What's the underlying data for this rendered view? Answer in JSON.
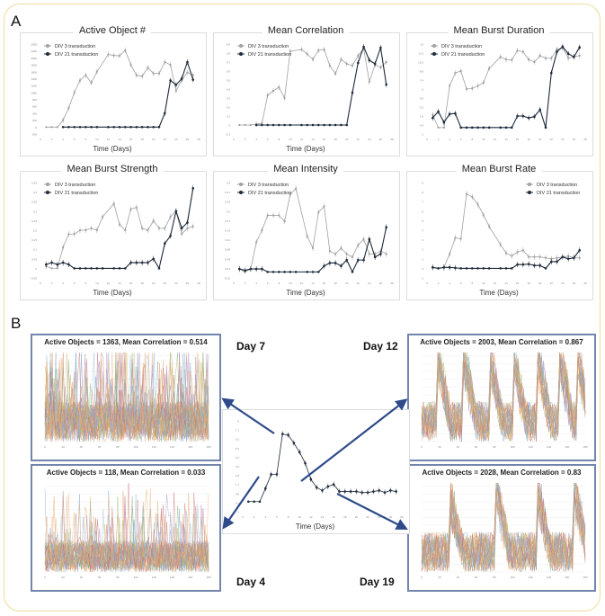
{
  "panel_a_label": "A",
  "panel_b_label": "B",
  "colors": {
    "div3": "#a0a0a0",
    "div21": "#1e2a3a",
    "arrow": "#2e4a8a",
    "frame": "#f0dc9a",
    "trace_box": "#7185ad"
  },
  "chart_data": [
    {
      "type": "line",
      "title": "Active Object #",
      "xlabel": "Time (Days)",
      "ylim": [
        -200,
        2400
      ],
      "xlim": [
        0,
        28
      ],
      "legend": "top-left",
      "series": [
        {
          "name": "DIV 3 transduction",
          "x": [
            1,
            2,
            3,
            4,
            5,
            6,
            7,
            8,
            9,
            10,
            12,
            13,
            14,
            15,
            16,
            17,
            18,
            19,
            20,
            21,
            22,
            23,
            24,
            25,
            26,
            27
          ],
          "values": [
            0,
            0,
            0,
            200,
            550,
            1000,
            1350,
            1500,
            1280,
            1600,
            2100,
            2070,
            2060,
            2220,
            1800,
            1500,
            1470,
            1720,
            1550,
            1550,
            1880,
            1800,
            1050,
            1350,
            1580,
            1500
          ]
        },
        {
          "name": "DIV 21 transduction",
          "x": [
            4,
            5,
            6,
            7,
            8,
            9,
            10,
            12,
            13,
            14,
            15,
            16,
            17,
            18,
            19,
            20,
            21,
            22,
            23,
            24,
            25,
            26,
            27
          ],
          "values": [
            0,
            0,
            0,
            0,
            0,
            0,
            0,
            0,
            0,
            0,
            0,
            0,
            0,
            0,
            0,
            0,
            0,
            400,
            1350,
            1220,
            1400,
            1880,
            1370
          ]
        }
      ]
    },
    {
      "type": "line",
      "title": "Mean Correlation",
      "xlabel": "Time (Days)",
      "ylim": [
        -0.1,
        0.9
      ],
      "xlim": [
        0,
        28
      ],
      "legend": "top-left",
      "series": [
        {
          "name": "DIV 3 transduction",
          "x": [
            1,
            2,
            3,
            4,
            5,
            6,
            7,
            8,
            9,
            10,
            12,
            13,
            14,
            15,
            16,
            17,
            18,
            19,
            20,
            21,
            22,
            23,
            24,
            25,
            26,
            27
          ],
          "values": [
            0,
            0,
            0,
            0.01,
            0.02,
            0.33,
            0.38,
            0.42,
            0.3,
            0.82,
            0.84,
            0.79,
            0.73,
            0.83,
            0.84,
            0.66,
            0.57,
            0.73,
            0.68,
            0.66,
            0.77,
            0.85,
            0.48,
            0.67,
            0.64,
            0.7
          ]
        },
        {
          "name": "DIV 21 transduction",
          "x": [
            4,
            5,
            6,
            7,
            8,
            9,
            10,
            12,
            13,
            14,
            15,
            16,
            17,
            18,
            19,
            20,
            21,
            22,
            23,
            24,
            25,
            26,
            27
          ],
          "values": [
            0,
            0,
            0,
            0,
            0,
            0,
            0,
            0,
            0,
            0,
            0,
            0,
            0,
            0,
            0,
            0,
            0.36,
            0.69,
            0.87,
            0.72,
            0.68,
            0.86,
            0.45
          ]
        }
      ]
    },
    {
      "type": "line",
      "title": "Mean Burst Duration",
      "xlabel": "",
      "ylim": [
        -1,
        13
      ],
      "xlim": [
        0,
        28
      ],
      "legend": "top-left",
      "series": [
        {
          "name": "DIV 3 transduction",
          "x": [
            1,
            2,
            3,
            4,
            5,
            6,
            7,
            8,
            9,
            10,
            11,
            13,
            14,
            15,
            16,
            17,
            18,
            19,
            20,
            21,
            22,
            23,
            24,
            25,
            26,
            27
          ],
          "values": [
            2,
            0,
            0,
            6.5,
            8.5,
            8.8,
            6,
            6.1,
            6.5,
            7,
            9.2,
            11,
            10.6,
            10.5,
            12,
            11.8,
            10.6,
            10.2,
            11.2,
            10.8,
            10.8,
            12.2,
            12.4,
            10.8,
            11,
            11.2
          ]
        },
        {
          "name": "DIV 21 transduction",
          "x": [
            1,
            2,
            3,
            4,
            5,
            6,
            7,
            8,
            9,
            10,
            11,
            13,
            14,
            15,
            16,
            17,
            18,
            19,
            20,
            21,
            22,
            23,
            24,
            25,
            26,
            27
          ],
          "values": [
            1.5,
            2.5,
            0.8,
            2.1,
            2.2,
            0,
            0,
            0,
            0,
            0,
            0,
            0,
            0,
            0,
            1.8,
            1.8,
            1.5,
            1.7,
            2.8,
            0,
            8.5,
            11.8,
            12.6,
            11.5,
            11,
            12.5
          ]
        }
      ]
    },
    {
      "type": "line",
      "title": "Mean Burst Strength",
      "xlabel": "Time (Days)",
      "ylim": [
        -0.05,
        0.45
      ],
      "xlim": [
        0,
        28
      ],
      "legend": "top-left",
      "series": [
        {
          "name": "DIV 3 transduction",
          "x": [
            1,
            2,
            3,
            4,
            5,
            6,
            7,
            8,
            9,
            10,
            11,
            13,
            14,
            15,
            16,
            17,
            18,
            19,
            20,
            21,
            22,
            23,
            24,
            25,
            26,
            27
          ],
          "values": [
            0.01,
            0,
            0,
            0.11,
            0.18,
            0.18,
            0.2,
            0.2,
            0.21,
            0.2,
            0.27,
            0.34,
            0.23,
            0.2,
            0.31,
            0.32,
            0.21,
            0.2,
            0.25,
            0.21,
            0.21,
            0.27,
            0.3,
            0.18,
            0.21,
            0.22
          ]
        },
        {
          "name": "DIV 21 transduction",
          "x": [
            1,
            2,
            3,
            4,
            5,
            6,
            7,
            8,
            9,
            10,
            11,
            13,
            14,
            15,
            16,
            17,
            18,
            19,
            20,
            21,
            22,
            23,
            24,
            25,
            26,
            27
          ],
          "values": [
            0.02,
            0.03,
            0.02,
            0.03,
            0.02,
            0,
            0,
            0,
            0,
            0,
            0,
            0,
            0,
            0,
            0.03,
            0.03,
            0.03,
            0.03,
            0.05,
            0,
            0.13,
            0.17,
            0.3,
            0.21,
            0.24,
            0.42
          ]
        }
      ]
    },
    {
      "type": "line",
      "title": "Mean Intensity",
      "xlabel": "Time (Days)",
      "ylim": [
        -0.02,
        0.3
      ],
      "xlim": [
        0,
        28
      ],
      "legend": "top-left",
      "series": [
        {
          "name": "DIV 3 transduction",
          "x": [
            1,
            2,
            3,
            4,
            5,
            6,
            7,
            8,
            9,
            10,
            11,
            13,
            14,
            15,
            16,
            17,
            18,
            19,
            20,
            21,
            22,
            23,
            24,
            25,
            26,
            27
          ],
          "values": [
            0.01,
            0,
            0.01,
            0.1,
            0.14,
            0.19,
            0.19,
            0.19,
            0.17,
            0.26,
            0.28,
            0.12,
            0.08,
            0.2,
            0.22,
            0.07,
            0.06,
            0.08,
            0.06,
            0.05,
            0.09,
            0.11,
            0.06,
            0.06,
            0.07,
            0.06
          ]
        },
        {
          "name": "DIV 21 transduction",
          "x": [
            1,
            2,
            3,
            4,
            5,
            6,
            7,
            8,
            9,
            10,
            11,
            13,
            14,
            15,
            16,
            17,
            18,
            19,
            20,
            21,
            22,
            23,
            24,
            25,
            26,
            27
          ],
          "values": [
            0.01,
            0.005,
            0.01,
            0.01,
            0.01,
            0,
            0,
            0,
            0,
            0,
            0,
            0,
            0,
            0,
            0.02,
            0.03,
            0.03,
            0.02,
            0.04,
            0,
            0.04,
            0.04,
            0.11,
            0.05,
            0.06,
            0.15
          ]
        }
      ]
    },
    {
      "type": "line",
      "title": "Mean Burst Rate",
      "xlabel": "Time (Days)",
      "ylim": [
        -1,
        9
      ],
      "xlim": [
        0,
        28
      ],
      "legend": "top-right",
      "series": [
        {
          "name": "DIV 3 transduction",
          "x": [
            1,
            2,
            3,
            4,
            5,
            6,
            7,
            8,
            9,
            10,
            11,
            13,
            14,
            15,
            16,
            17,
            18,
            19,
            20,
            21,
            22,
            23,
            24,
            25,
            26,
            27
          ],
          "values": [
            0.1,
            0,
            0.1,
            1.5,
            3.2,
            3.1,
            7.8,
            7.5,
            6.7,
            5.6,
            4.4,
            2.5,
            1.6,
            1.3,
            1.7,
            1.9,
            1.2,
            1.2,
            1.2,
            1.1,
            1,
            1.1,
            1.2,
            1.3,
            1.1,
            1.1
          ]
        },
        {
          "name": "DIV 21 transduction",
          "x": [
            1,
            2,
            3,
            4,
            5,
            6,
            7,
            8,
            9,
            10,
            11,
            13,
            14,
            15,
            16,
            17,
            18,
            19,
            20,
            21,
            22,
            23,
            24,
            25,
            26,
            27
          ],
          "values": [
            0.1,
            0,
            0.1,
            0.1,
            0.05,
            0,
            0,
            0,
            0,
            0,
            0,
            0,
            0,
            0,
            0.4,
            0.4,
            0.45,
            0.3,
            0.3,
            0,
            0.7,
            0.7,
            1.2,
            1,
            1.1,
            1.9
          ]
        }
      ]
    },
    {
      "type": "line",
      "title": "",
      "xlabel": "Time (Days)",
      "ylim": [
        -1,
        8
      ],
      "xlim": [
        0,
        28
      ],
      "legend": "none",
      "series": [
        {
          "x": [
            1,
            2,
            3,
            4,
            5,
            6,
            7,
            8,
            9,
            10,
            11,
            12,
            13,
            14,
            15,
            16,
            17,
            18,
            19,
            20,
            21,
            22,
            23,
            24,
            25,
            26,
            27
          ],
          "values": [
            0,
            0,
            0,
            1.3,
            2.7,
            2.7,
            6.7,
            6.6,
            5.8,
            4.9,
            3.8,
            2.2,
            1.4,
            1.1,
            1.5,
            1.7,
            1,
            1,
            1,
            1,
            0.9,
            0.9,
            1,
            1.1,
            0.9,
            1.1,
            1
          ]
        }
      ]
    }
  ],
  "panel_b": {
    "day7": {
      "label": "Day 7",
      "title": "Active Objects = 1363, Mean Correlation = 0.514"
    },
    "day4": {
      "label": "Day 4",
      "title": "Active Objects = 118, Mean Correlation = 0.033"
    },
    "day12": {
      "label": "Day 12",
      "title": "Active Objects = 2003, Mean Correlation = 0.867"
    },
    "day19": {
      "label": "Day 19",
      "title": "Active Objects = 2028, Mean Correlation = 0.83"
    }
  }
}
